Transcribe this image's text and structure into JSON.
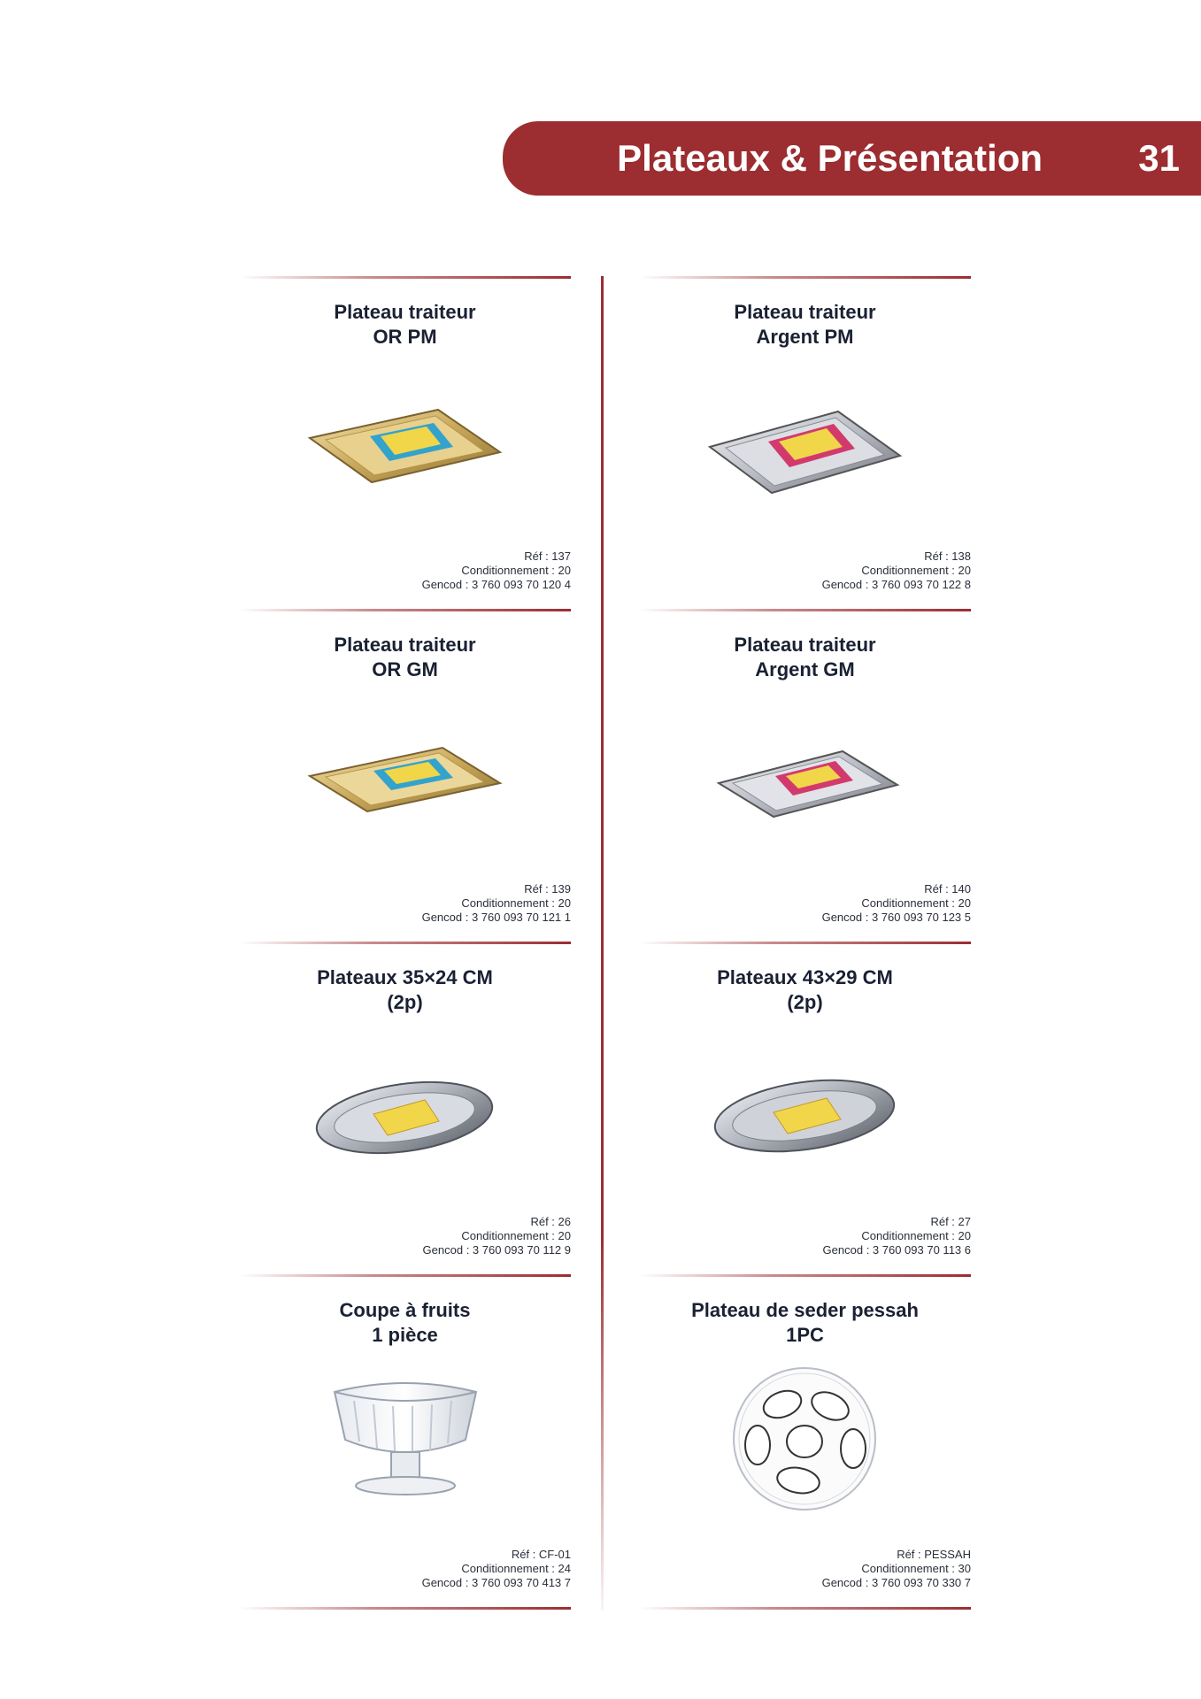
{
  "header": {
    "title": "Plateaux & Présentation",
    "page_number": "31"
  },
  "colors": {
    "accent": "#9c2d31"
  },
  "products": [
    {
      "title_line1": "Plateau traiteur",
      "title_line2": "OR PM",
      "ref": "Réf : 137",
      "conditionnement": "Conditionnement : 20",
      "gencod": "Gencod : 3 760 093 70 120 4",
      "image": "gold-rectangular-tray-icon"
    },
    {
      "title_line1": "Plateau traiteur",
      "title_line2": "Argent PM",
      "ref": "Réf : 138",
      "conditionnement": "Conditionnement : 20",
      "gencod": "Gencod : 3 760 093 70 122 8",
      "image": "silver-rectangular-tray-icon"
    },
    {
      "title_line1": "Plateau traiteur",
      "title_line2": "OR GM",
      "ref": "Réf : 139",
      "conditionnement": "Conditionnement : 20",
      "gencod": "Gencod : 3 760 093 70 121 1",
      "image": "gold-rectangular-tray-icon"
    },
    {
      "title_line1": "Plateau traiteur",
      "title_line2": "Argent GM",
      "ref": "Réf : 140",
      "conditionnement": "Conditionnement : 20",
      "gencod": "Gencod : 3 760 093 70 123 5",
      "image": "silver-rectangular-tray-icon"
    },
    {
      "title_line1": "Plateaux 35×24 CM",
      "title_line2": "(2p)",
      "ref": "Réf : 26",
      "conditionnement": "Conditionnement : 20",
      "gencod": "Gencod : 3 760 093 70 112 9",
      "image": "oval-tray-icon"
    },
    {
      "title_line1": "Plateaux 43×29 CM",
      "title_line2": "(2p)",
      "ref": "Réf : 27",
      "conditionnement": "Conditionnement : 20",
      "gencod": "Gencod : 3 760 093 70 113 6",
      "image": "oval-tray-icon"
    },
    {
      "title_line1": "Coupe à fruits",
      "title_line2": "1 pièce",
      "ref": "Réf : CF-01",
      "conditionnement": "Conditionnement : 24",
      "gencod": "Gencod : 3 760 093 70 413 7",
      "image": "fruit-bowl-icon"
    },
    {
      "title_line1": "Plateau de seder pessah",
      "title_line2": "1PC",
      "ref": "Réf : PESSAH",
      "conditionnement": "Conditionnement : 30",
      "gencod": "Gencod : 3 760 093 70 330 7",
      "image": "seder-plate-icon"
    }
  ]
}
